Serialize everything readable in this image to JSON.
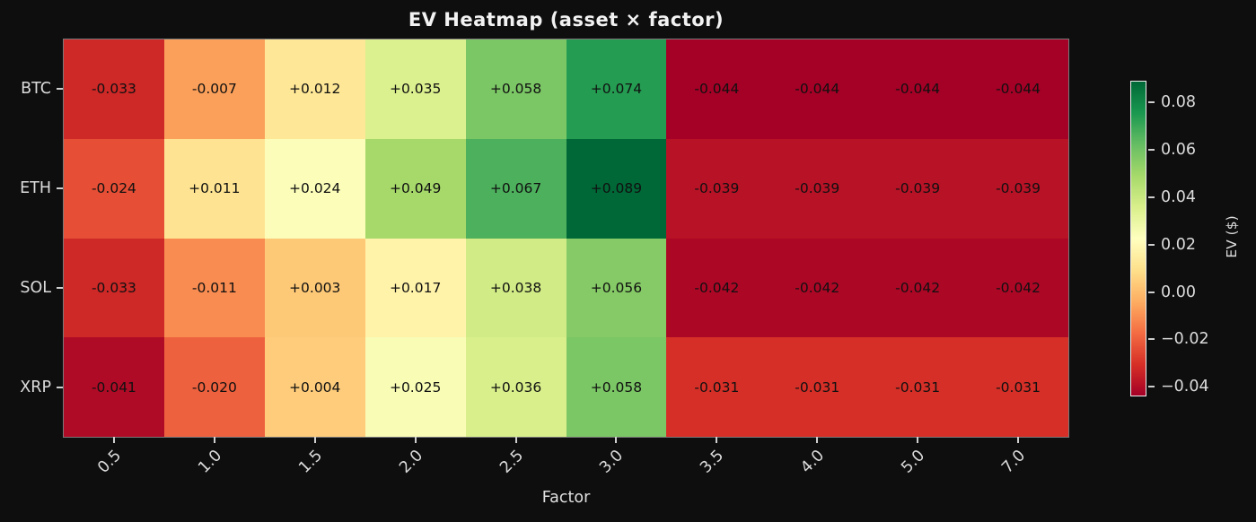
{
  "figure": {
    "background": "#0e0e0e",
    "text_color": "#dcdcdc",
    "cell_text_color": "#101010"
  },
  "chart_data": {
    "type": "heatmap",
    "title": "EV Heatmap (asset × factor)",
    "xlabel": "Factor",
    "ylabel": "",
    "rows": [
      "BTC",
      "ETH",
      "SOL",
      "XRP"
    ],
    "columns": [
      "0.5",
      "1.0",
      "1.5",
      "2.0",
      "2.5",
      "3.0",
      "3.5",
      "4.0",
      "5.0",
      "7.0"
    ],
    "values": [
      [
        -0.033,
        -0.007,
        0.012,
        0.035,
        0.058,
        0.074,
        -0.044,
        -0.044,
        -0.044,
        -0.044
      ],
      [
        -0.024,
        0.011,
        0.024,
        0.049,
        0.067,
        0.089,
        -0.039,
        -0.039,
        -0.039,
        -0.039
      ],
      [
        -0.033,
        -0.011,
        0.003,
        0.017,
        0.038,
        0.056,
        -0.042,
        -0.042,
        -0.042,
        -0.042
      ],
      [
        -0.041,
        -0.02,
        0.004,
        0.025,
        0.036,
        0.058,
        -0.031,
        -0.031,
        -0.031,
        -0.031
      ]
    ],
    "value_label_format": "+0.000",
    "annotations_visible": true,
    "grid": false,
    "colorbar": {
      "label": "EV ($)",
      "ticks": [
        0.08,
        0.06,
        0.04,
        0.02,
        0.0,
        -0.02,
        -0.04
      ],
      "vmin": -0.044,
      "vmax": 0.089,
      "colormap": "RdYlGn",
      "colormap_stops": [
        "#a50026",
        "#d73027",
        "#f46d43",
        "#fdae61",
        "#fee08b",
        "#ffffbf",
        "#d9ef8b",
        "#a6d96a",
        "#66bd63",
        "#1a9850",
        "#006837"
      ],
      "position": "right"
    }
  }
}
